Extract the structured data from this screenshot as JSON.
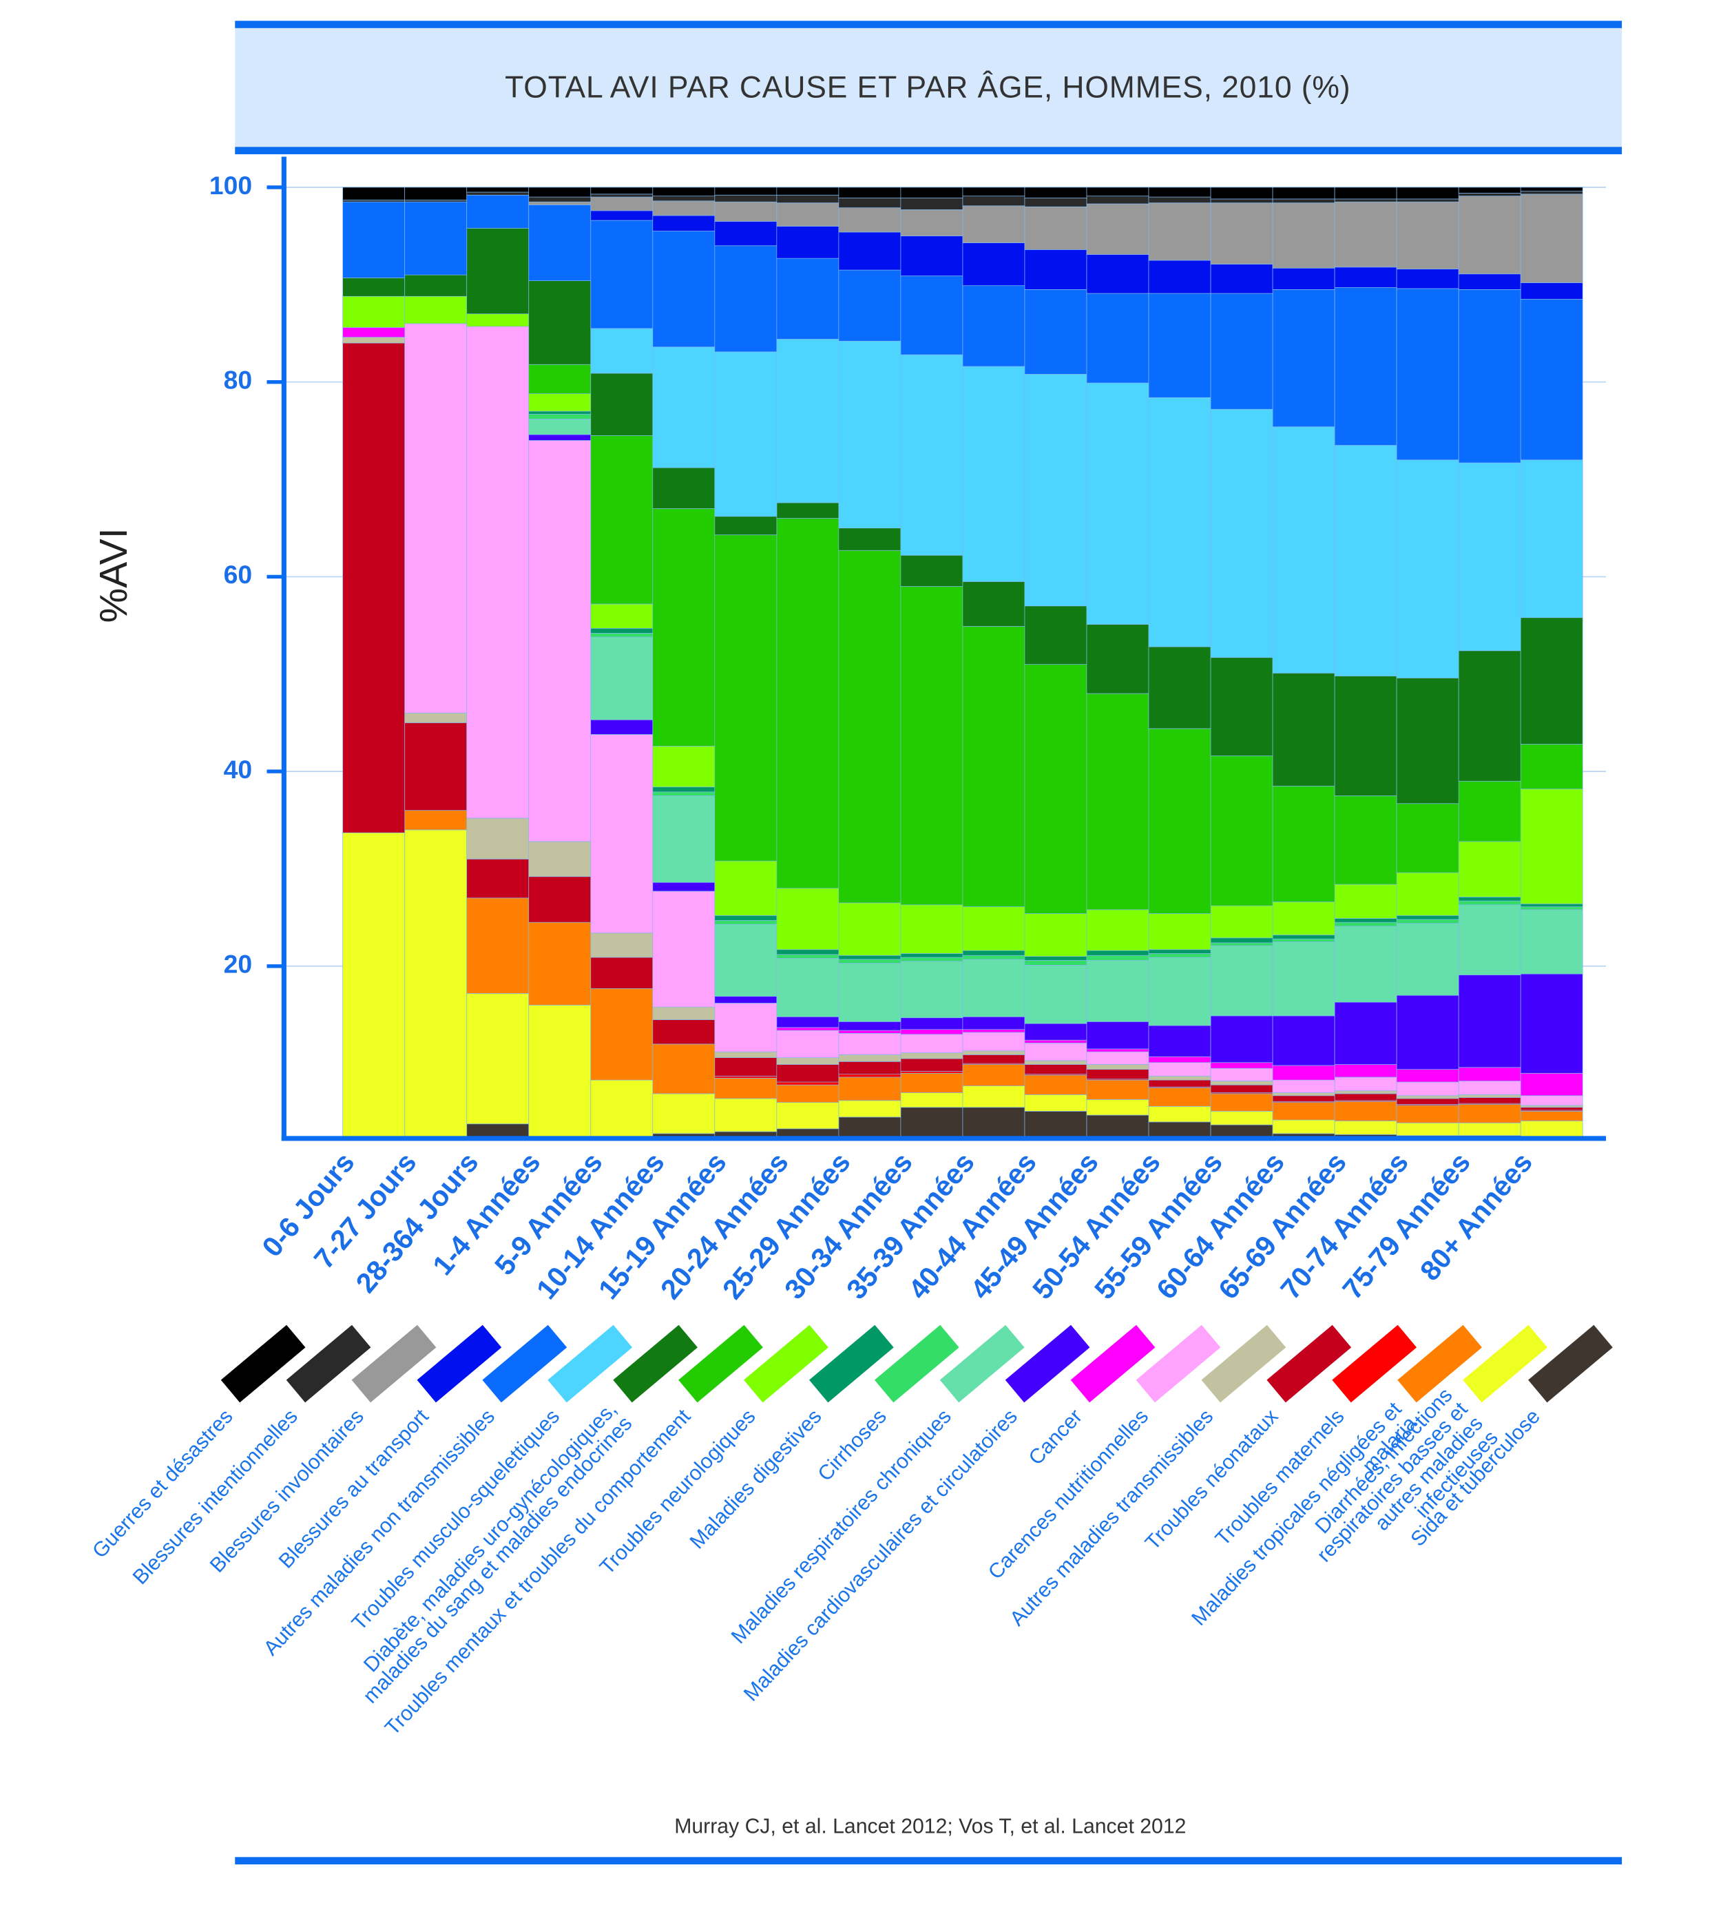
{
  "chart_data": {
    "type": "bar",
    "stacked": true,
    "title": "TOTAL AVI PAR CAUSE ET PAR ÂGE, HOMMES, 2010 (%)",
    "ylabel": "%AVI",
    "source": "Murray CJ, et al. Lancet 2012; Vos T, et al. Lancet 2012",
    "categories": [
      "0-6 Jours",
      "7-27 Jours",
      "28-364 Jours",
      "1-4 Années",
      "5-9 Années",
      "10-14 Années",
      "15-19 Années",
      "20-24 Années",
      "25-29 Années",
      "30-34 Années",
      "35-39 Années",
      "40-44 Années",
      "45-49 Années",
      "50-54 Années",
      "55-59 Années",
      "60-64 Années",
      "65-69 Années",
      "70-74 Années",
      "75-79 Années",
      "80+ Années"
    ],
    "ylim": [
      2.3,
      100
    ],
    "yticks": [
      20,
      40,
      60,
      80,
      100
    ],
    "grid": true,
    "series": [
      {
        "name": "Guerres et désastres",
        "color": "#000000",
        "values": [
          1.3,
          1.3,
          0.5,
          1.0,
          0.7,
          0.9,
          0.8,
          0.8,
          1.1,
          1.1,
          0.9,
          1.1,
          0.9,
          1.0,
          1.2,
          1.2,
          1.2,
          1.2,
          0.6,
          0.4
        ]
      },
      {
        "name": "Blessures intentionnelles",
        "color": "#2a2a2a",
        "values": [
          0.2,
          0.2,
          0.3,
          0.5,
          0.3,
          0.5,
          0.7,
          0.8,
          1.0,
          1.2,
          1.0,
          0.9,
          0.8,
          0.6,
          0.4,
          0.4,
          0.3,
          0.3,
          0.3,
          0.3
        ]
      },
      {
        "name": "Blessures involontaires",
        "color": "#999999",
        "values": [
          0,
          0,
          0,
          0.3,
          1.4,
          1.5,
          2.0,
          2.4,
          2.5,
          2.7,
          3.8,
          4.4,
          5.2,
          5.9,
          6.3,
          6.7,
          6.7,
          6.9,
          8.0,
          9.1
        ]
      },
      {
        "name": "Blessures au transport",
        "color": "#0010ee",
        "values": [
          0,
          0,
          0,
          0,
          1.0,
          1.6,
          2.5,
          3.3,
          3.9,
          4.1,
          4.4,
          4.1,
          4.0,
          3.4,
          3.0,
          2.2,
          2.1,
          2.0,
          1.6,
          1.7
        ]
      },
      {
        "name": "Autres maladies non transmissibles",
        "color": "#0a6cff",
        "values": [
          7.8,
          7.5,
          3.4,
          7.8,
          11.1,
          11.9,
          10.9,
          8.3,
          7.3,
          8.1,
          8.3,
          8.7,
          9.2,
          10.7,
          11.9,
          14.1,
          16.2,
          17.6,
          17.8,
          16.5
        ]
      },
      {
        "name": "Troubles musculo-squelettiques",
        "color": "#4dd4ff",
        "values": [
          0,
          0,
          0,
          0,
          4.6,
          12.4,
          16.9,
          16.8,
          19.2,
          20.6,
          22.1,
          23.8,
          24.8,
          25.6,
          25.5,
          25.3,
          23.7,
          22.4,
          19.3,
          16.2
        ]
      },
      {
        "name": "Diabète, maladies uro-gynécologiques,\nmaladies du sang et maladies endocrines",
        "color": "#127a12",
        "values": [
          1.9,
          2.2,
          8.8,
          8.6,
          6.4,
          4.2,
          1.9,
          1.6,
          2.3,
          3.2,
          4.6,
          6.0,
          7.1,
          8.4,
          10.1,
          11.6,
          12.3,
          12.9,
          13.4,
          13.0
        ]
      },
      {
        "name": "Troubles mentaux et troubles du comportement",
        "color": "#22cc00",
        "values": [
          0,
          0,
          0,
          3.0,
          17.3,
          24.4,
          33.5,
          38.0,
          36.2,
          32.7,
          28.8,
          25.6,
          22.2,
          19.0,
          15.4,
          11.9,
          9.1,
          7.1,
          6.2,
          4.6
        ]
      },
      {
        "name": "Troubles neurologiques",
        "color": "#80ff00",
        "values": [
          3.2,
          2.8,
          1.3,
          1.8,
          2.5,
          4.2,
          5.6,
          6.3,
          5.4,
          5.0,
          4.5,
          4.4,
          4.2,
          3.7,
          3.3,
          3.4,
          3.5,
          4.4,
          5.7,
          11.8
        ]
      },
      {
        "name": "Maladies digestives",
        "color": "#009966",
        "values": [
          0,
          0,
          0,
          0.3,
          0.5,
          0.5,
          0.5,
          0.5,
          0.4,
          0.4,
          0.5,
          0.4,
          0.5,
          0.4,
          0.5,
          0.4,
          0.4,
          0.4,
          0.4,
          0.3
        ]
      },
      {
        "name": "Cirrhoses",
        "color": "#33dd66",
        "values": [
          0,
          0,
          0,
          0.5,
          0.4,
          0.4,
          0.4,
          0.4,
          0.4,
          0.4,
          0.4,
          0.5,
          0.5,
          0.4,
          0.3,
          0.3,
          0.4,
          0.4,
          0.4,
          0.3
        ]
      },
      {
        "name": "Maladies respiratoires chroniques",
        "color": "#66e0aa",
        "values": [
          0,
          0,
          0,
          1.6,
          8.5,
          8.9,
          7.4,
          6.0,
          6.0,
          5.8,
          5.9,
          6.0,
          6.3,
          7.0,
          7.2,
          7.6,
          7.8,
          7.4,
          7.2,
          6.6
        ]
      },
      {
        "name": "Maladies cardiovasculaires et circulatoires",
        "color": "#4400ff",
        "values": [
          0,
          0,
          0,
          0.6,
          1.5,
          0.9,
          0.7,
          1.1,
          0.9,
          1.2,
          1.3,
          1.7,
          2.8,
          3.2,
          4.8,
          5.1,
          6.4,
          7.6,
          9.5,
          10.2
        ]
      },
      {
        "name": "Cancer",
        "color": "#ff00ff",
        "values": [
          1.0,
          0,
          0,
          0,
          0,
          0,
          0,
          0.3,
          0.3,
          0.5,
          0.3,
          0.3,
          0.3,
          0.6,
          0.6,
          1.5,
          1.3,
          1.3,
          1.4,
          2.3
        ]
      },
      {
        "name": "Carences nutritionnelles",
        "color": "#ffa3ff",
        "values": [
          0,
          40.0,
          50.5,
          41.2,
          20.4,
          11.9,
          5.0,
          2.8,
          2.2,
          1.9,
          1.9,
          1.8,
          1.3,
          1.4,
          1.3,
          1.3,
          1.4,
          1.4,
          1.4,
          1.0
        ]
      },
      {
        "name": "Autres maladies transmissibles",
        "color": "#c2c2a0",
        "values": [
          0.6,
          1.0,
          4.2,
          3.6,
          2.5,
          1.3,
          0.6,
          0.7,
          0.7,
          0.6,
          0.4,
          0.4,
          0.5,
          0.4,
          0.4,
          0.3,
          0.3,
          0.3,
          0.3,
          0.2
        ]
      },
      {
        "name": "Troubles néonataux",
        "color": "#c4001c",
        "values": [
          50.3,
          9.0,
          4.0,
          4.7,
          3.2,
          2.5,
          1.9,
          1.8,
          1.3,
          1.3,
          0.9,
          1.0,
          1.0,
          0.7,
          0.8,
          0.6,
          0.7,
          0.6,
          0.6,
          0.3
        ]
      },
      {
        "name": "Troubles maternels",
        "color": "#ff0000",
        "values": [
          0,
          0,
          0,
          0,
          0,
          0,
          0.2,
          0.3,
          0.3,
          0.2,
          0.1,
          0.1,
          0.1,
          0.1,
          0.1,
          0.1,
          0.1,
          0.1,
          0.1,
          0.1
        ]
      },
      {
        "name": "Maladies tropicales négligées et malaria",
        "color": "#ff8000",
        "values": [
          0,
          2.0,
          9.8,
          8.5,
          9.4,
          5.1,
          2.1,
          1.8,
          2.4,
          2.0,
          2.2,
          2.0,
          2.0,
          1.9,
          1.8,
          1.8,
          2.0,
          1.8,
          1.9,
          1.0
        ]
      },
      {
        "name": "Diarrhées, infections respiratoires basses et\nautres maladies infectieuses",
        "color": "#eeff22",
        "values": [
          33.7,
          34.0,
          13.4,
          16.0,
          8.0,
          4.1,
          3.4,
          2.7,
          1.7,
          1.5,
          2.2,
          1.7,
          1.6,
          1.6,
          1.4,
          1.4,
          1.4,
          1.3,
          1.3,
          1.6
        ]
      },
      {
        "name": "Sida et tuberculose",
        "color": "#403630",
        "values": [
          0,
          0,
          3.8,
          0,
          0.3,
          2.8,
          3.0,
          3.3,
          4.5,
          5.5,
          5.5,
          5.1,
          4.7,
          4.0,
          3.7,
          2.8,
          2.7,
          2.6,
          2.6,
          2.5
        ]
      }
    ]
  }
}
